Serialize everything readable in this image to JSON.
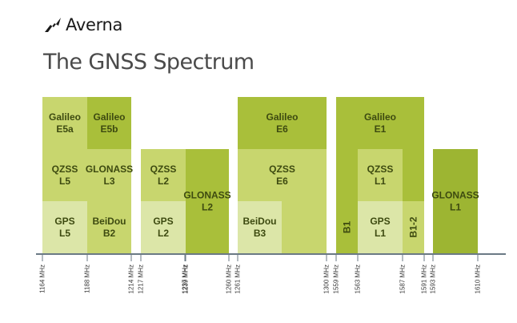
{
  "brand": {
    "name": "Averna",
    "logo_icon": "averna-arrow-logo"
  },
  "title": "The GNSS Spectrum",
  "colors": {
    "light": "#dce6a8",
    "mid": "#c8d66e",
    "dark": "#a9bf3a",
    "darker": "#9db532",
    "axis": "#6b7a85"
  },
  "chart_data": {
    "type": "spectrum",
    "frequency_unit": "MHz",
    "ticks": [
      {
        "mhz": 1164,
        "label": "1164 MHz"
      },
      {
        "mhz": 1188,
        "label": "1188 MHz"
      },
      {
        "mhz": 1214,
        "label": "1214 MHz"
      },
      {
        "mhz": 1217,
        "label": "1217 MHz"
      },
      {
        "mhz": 1237,
        "label": "1237 MHz"
      },
      {
        "mhz": 1239,
        "label": "1239 MHz"
      },
      {
        "mhz": 1260,
        "label": "1260 MHz"
      },
      {
        "mhz": 1261,
        "label": "1261 MHz"
      },
      {
        "mhz": 1300,
        "label": "1300 MHz"
      },
      {
        "mhz": 1559,
        "label": "1559 MHz"
      },
      {
        "mhz": 1563,
        "label": "1563 MHz"
      },
      {
        "mhz": 1587,
        "label": "1587 MHz"
      },
      {
        "mhz": 1591,
        "label": "1591 MHz"
      },
      {
        "mhz": 1593,
        "label": "1593 MHz"
      },
      {
        "mhz": 1610,
        "label": "1610 MHz"
      }
    ],
    "tiers": 3,
    "blocks": [
      {
        "lines": [
          "Galileo",
          "E5a"
        ],
        "start": 1164,
        "end": 1188,
        "tier_from": 2,
        "tier_to": 3,
        "shade": "mid"
      },
      {
        "lines": [
          "Galileo",
          "E5b"
        ],
        "start": 1188,
        "end": 1214,
        "tier_from": 2,
        "tier_to": 3,
        "shade": "dark"
      },
      {
        "lines": [
          "QZSS",
          "L5"
        ],
        "start": 1164,
        "end": 1188,
        "tier_from": 1,
        "tier_to": 2,
        "shade": "mid"
      },
      {
        "lines": [
          "GLONASS",
          "L3"
        ],
        "start": 1188,
        "end": 1214,
        "tier_from": 1,
        "tier_to": 2,
        "shade": "mid"
      },
      {
        "lines": [
          "GPS",
          "L5"
        ],
        "start": 1164,
        "end": 1188,
        "tier_from": 0,
        "tier_to": 1,
        "shade": "light"
      },
      {
        "lines": [
          "BeiDou",
          "B2"
        ],
        "start": 1188,
        "end": 1214,
        "tier_from": 0,
        "tier_to": 1,
        "shade": "mid"
      },
      {
        "lines": [
          "QZSS",
          "L2"
        ],
        "start": 1217,
        "end": 1239,
        "tier_from": 1,
        "tier_to": 2,
        "shade": "mid"
      },
      {
        "lines": [
          "GPS",
          "L2"
        ],
        "start": 1217,
        "end": 1239,
        "tier_from": 0,
        "tier_to": 1,
        "shade": "light"
      },
      {
        "lines": [
          "GLONASS",
          "L2"
        ],
        "start": 1239,
        "end": 1260,
        "tier_from": 0,
        "tier_to": 2,
        "shade": "dark"
      },
      {
        "lines": [
          "Galileo",
          "E6"
        ],
        "start": 1261,
        "end": 1300,
        "tier_from": 2,
        "tier_to": 3,
        "shade": "dark"
      },
      {
        "lines": [
          "QZSS",
          "E6"
        ],
        "start": 1261,
        "end": 1300,
        "tier_from": 1,
        "tier_to": 2,
        "shade": "mid"
      },
      {
        "lines": [
          "BeiDou",
          "B3"
        ],
        "start": 1261,
        "end": 1276,
        "tier_from": 0,
        "tier_to": 1,
        "shade": "light"
      },
      {
        "lines": [],
        "start": 1276,
        "end": 1300,
        "tier_from": 0,
        "tier_to": 1,
        "shade": "mid"
      },
      {
        "lines": [
          "Galileo",
          "E1"
        ],
        "start": 1559,
        "end": 1591,
        "tier_from": 2,
        "tier_to": 3,
        "shade": "dark"
      },
      {
        "lines": [],
        "start": 1559,
        "end": 1563,
        "tier_from": 1,
        "tier_to": 2,
        "shade": "dark"
      },
      {
        "lines": [
          "QZSS",
          "L1"
        ],
        "start": 1563,
        "end": 1587,
        "tier_from": 1,
        "tier_to": 2,
        "shade": "mid"
      },
      {
        "lines": [],
        "start": 1587,
        "end": 1591,
        "tier_from": 1,
        "tier_to": 2,
        "shade": "dark"
      },
      {
        "lines": [
          "B1"
        ],
        "start": 1559,
        "end": 1563,
        "tier_from": 0,
        "tier_to": 1,
        "shade": "dark",
        "vertical": true
      },
      {
        "lines": [
          "GPS",
          "L1"
        ],
        "start": 1563,
        "end": 1587,
        "tier_from": 0,
        "tier_to": 1,
        "shade": "light"
      },
      {
        "lines": [
          "B1-2"
        ],
        "start": 1587,
        "end": 1591,
        "tier_from": 0,
        "tier_to": 1,
        "shade": "mid",
        "vertical": true
      },
      {
        "lines": [
          "GLONASS",
          "L1"
        ],
        "start": 1593,
        "end": 1610,
        "tier_from": 0,
        "tier_to": 2,
        "shade": "darker"
      }
    ]
  }
}
